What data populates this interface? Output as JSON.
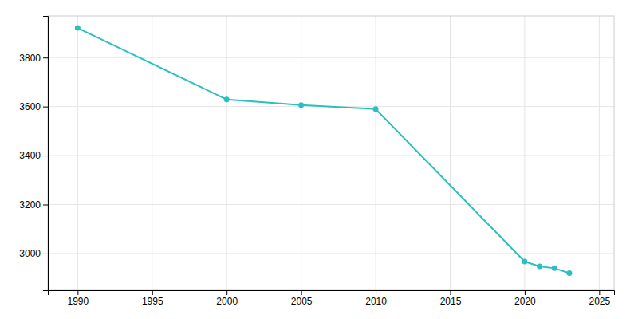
{
  "chart_data": {
    "type": "line",
    "x": [
      1990,
      2000,
      2005,
      2010,
      2020,
      2021,
      2022,
      2023
    ],
    "values": [
      3921,
      3629,
      3606,
      3590,
      2967,
      2948,
      2940,
      2920
    ],
    "color": "#2bbfbf",
    "marker": "circle",
    "xlim": [
      1988,
      2026
    ],
    "ylim": [
      2850,
      3970
    ],
    "xticks": [
      1990,
      1995,
      2000,
      2005,
      2010,
      2015,
      2020,
      2025
    ],
    "yticks": [
      3000,
      3200,
      3400,
      3600,
      3800
    ],
    "grid": true
  }
}
